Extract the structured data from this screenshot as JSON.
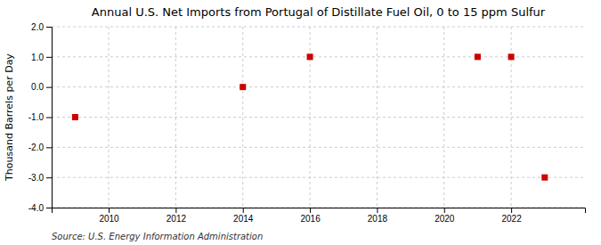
{
  "chart_data": {
    "type": "scatter",
    "title": "Annual U.S. Net Imports from Portugal of Distillate Fuel Oil, 0 to 15 ppm Sulfur",
    "ylabel": "Thousand Barrels per Day",
    "source": "Source: U.S. Energy Information Administration",
    "x": [
      2009,
      2014,
      2016,
      2021,
      2022,
      2023
    ],
    "values": [
      -1,
      0,
      1,
      1,
      1,
      -3
    ],
    "color": "#cc0000",
    "marker": "square",
    "xlim": [
      2008.3,
      2024.2
    ],
    "ylim": [
      -4.0,
      2.0
    ],
    "xticks": [
      2010,
      2012,
      2014,
      2016,
      2018,
      2020,
      2022
    ],
    "yticks": [
      {
        "value": -4.0,
        "label": "-4.0"
      },
      {
        "value": -3.0,
        "label": "-3.0"
      },
      {
        "value": -2.0,
        "label": "-2.0"
      },
      {
        "value": -1.0,
        "label": "-1.0"
      },
      {
        "value": 0.0,
        "label": "0.0"
      },
      {
        "value": 1.0,
        "label": "1.0"
      },
      {
        "value": 2.0,
        "label": "2.0"
      }
    ],
    "grid": true
  }
}
